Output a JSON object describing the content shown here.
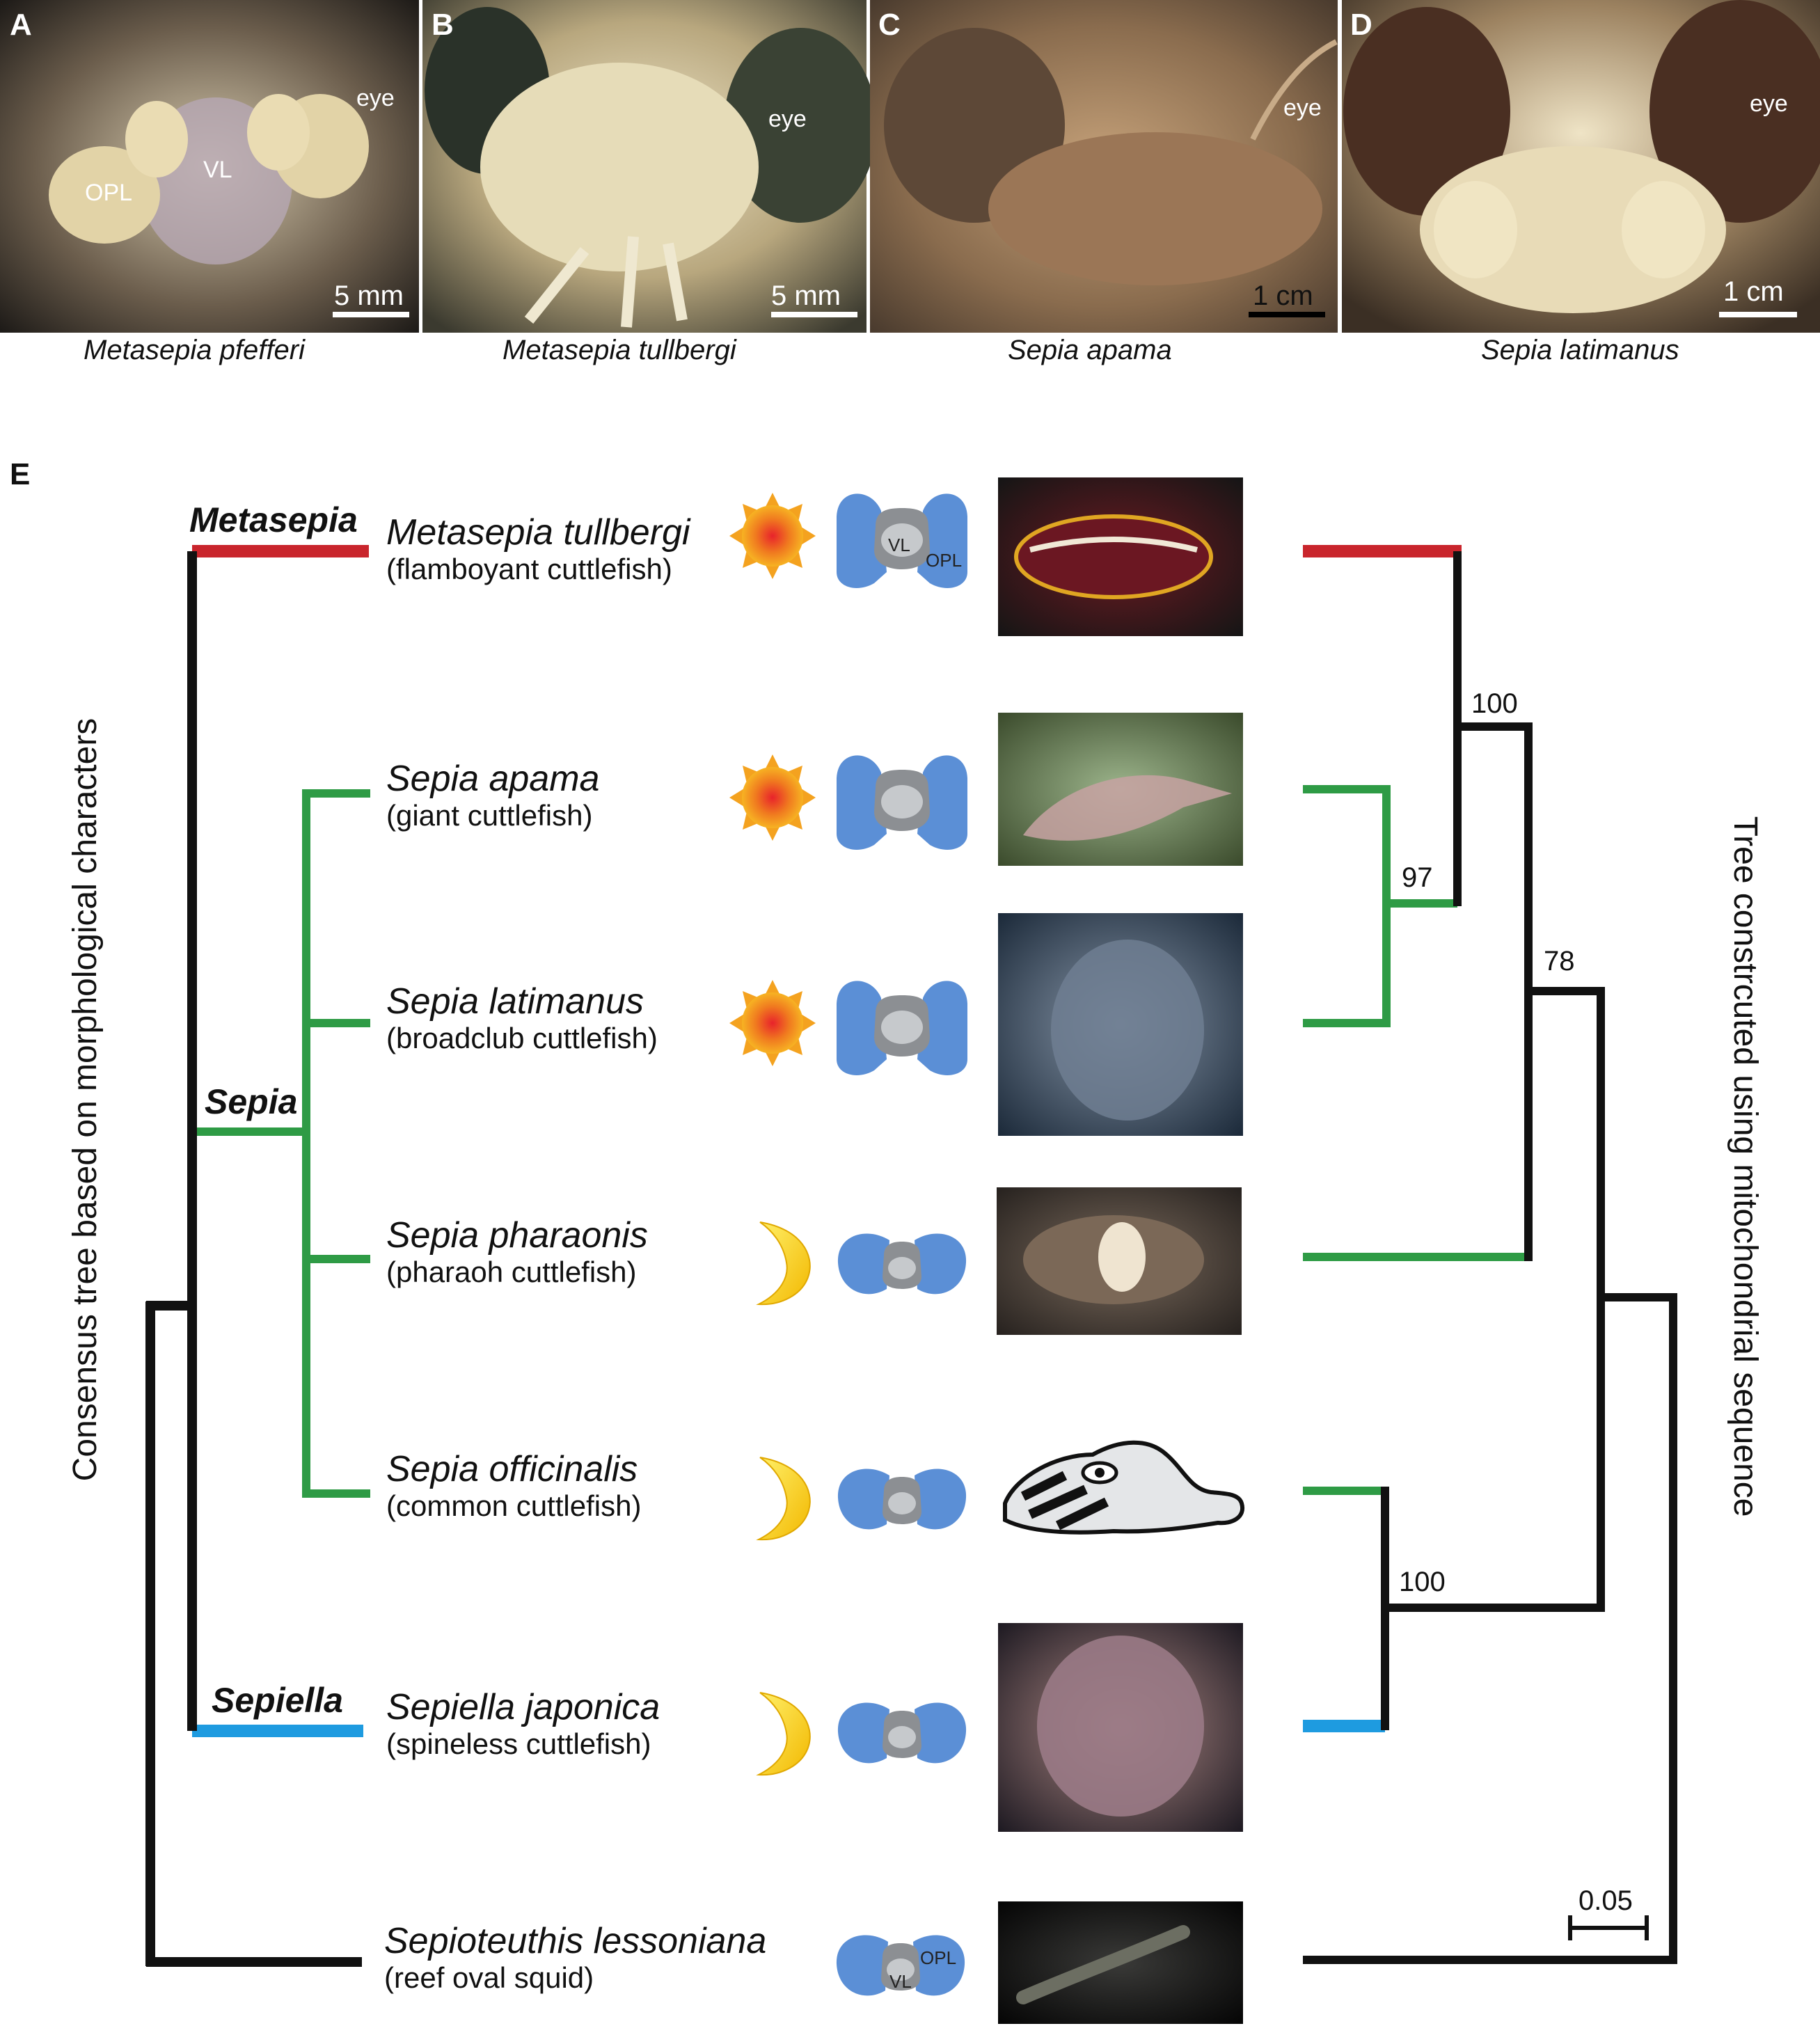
{
  "panel_labels": {
    "a": "A",
    "b": "B",
    "c": "C",
    "d": "D",
    "e": "E"
  },
  "photos": [
    {
      "eye": "eye",
      "opl": "OPL",
      "vl": "VL",
      "scale": "5 mm",
      "caption": "Metasepia pfefferi"
    },
    {
      "eye": "eye",
      "scale": "5 mm",
      "caption": "Metasepia tullbergi"
    },
    {
      "eye": "eye",
      "scale": "1 cm",
      "caption": "Sepia apama"
    },
    {
      "eye": "eye",
      "scale": "1 cm",
      "caption": "Sepia latimanus"
    }
  ],
  "genera": {
    "metasepia": "Metasepia",
    "sepia": "Sepia",
    "sepiella": "Sepiella"
  },
  "species": [
    {
      "sci": "Metasepia tullbergi",
      "common": "(flamboyant cuttlefish)",
      "activity": "sun-icon",
      "brain_vl": "VL",
      "brain_opl": "OPL"
    },
    {
      "sci": "Sepia apama",
      "common": "(giant cuttlefish)",
      "activity": "sun-icon"
    },
    {
      "sci": "Sepia latimanus",
      "common": "(broadclub cuttlefish)",
      "activity": "sun-icon"
    },
    {
      "sci": "Sepia pharaonis",
      "common": "(pharaoh cuttlefish)",
      "activity": "moon-icon"
    },
    {
      "sci": "Sepia officinalis",
      "common": "(common cuttlefish)",
      "activity": "moon-icon"
    },
    {
      "sci": "Sepiella japonica",
      "common": "(spineless cuttlefish)",
      "activity": "moon-icon"
    },
    {
      "sci": "Sepioteuthis lessoniana",
      "common": "(reef oval squid)",
      "brain_vl": "VL",
      "brain_opl": "OPL"
    }
  ],
  "left_tree_label": "Consensus tree based on morphological characters",
  "right_tree_label": "Tree constrcuted using mitochondrial sequence",
  "support_values": {
    "root_sepia_metasepia": "100",
    "apama_latimanus": "97",
    "with_pharaonis": "78",
    "officinalis_sepiella": "100"
  },
  "scale_bar": "0.05",
  "colors": {
    "metasepia": "#c9252c",
    "sepia": "#2e9b45",
    "sepiella": "#1e9be0",
    "outgroup": "#111111",
    "brain_lobe": "#5b8fd6",
    "brain_center": "#b9bcc0"
  }
}
